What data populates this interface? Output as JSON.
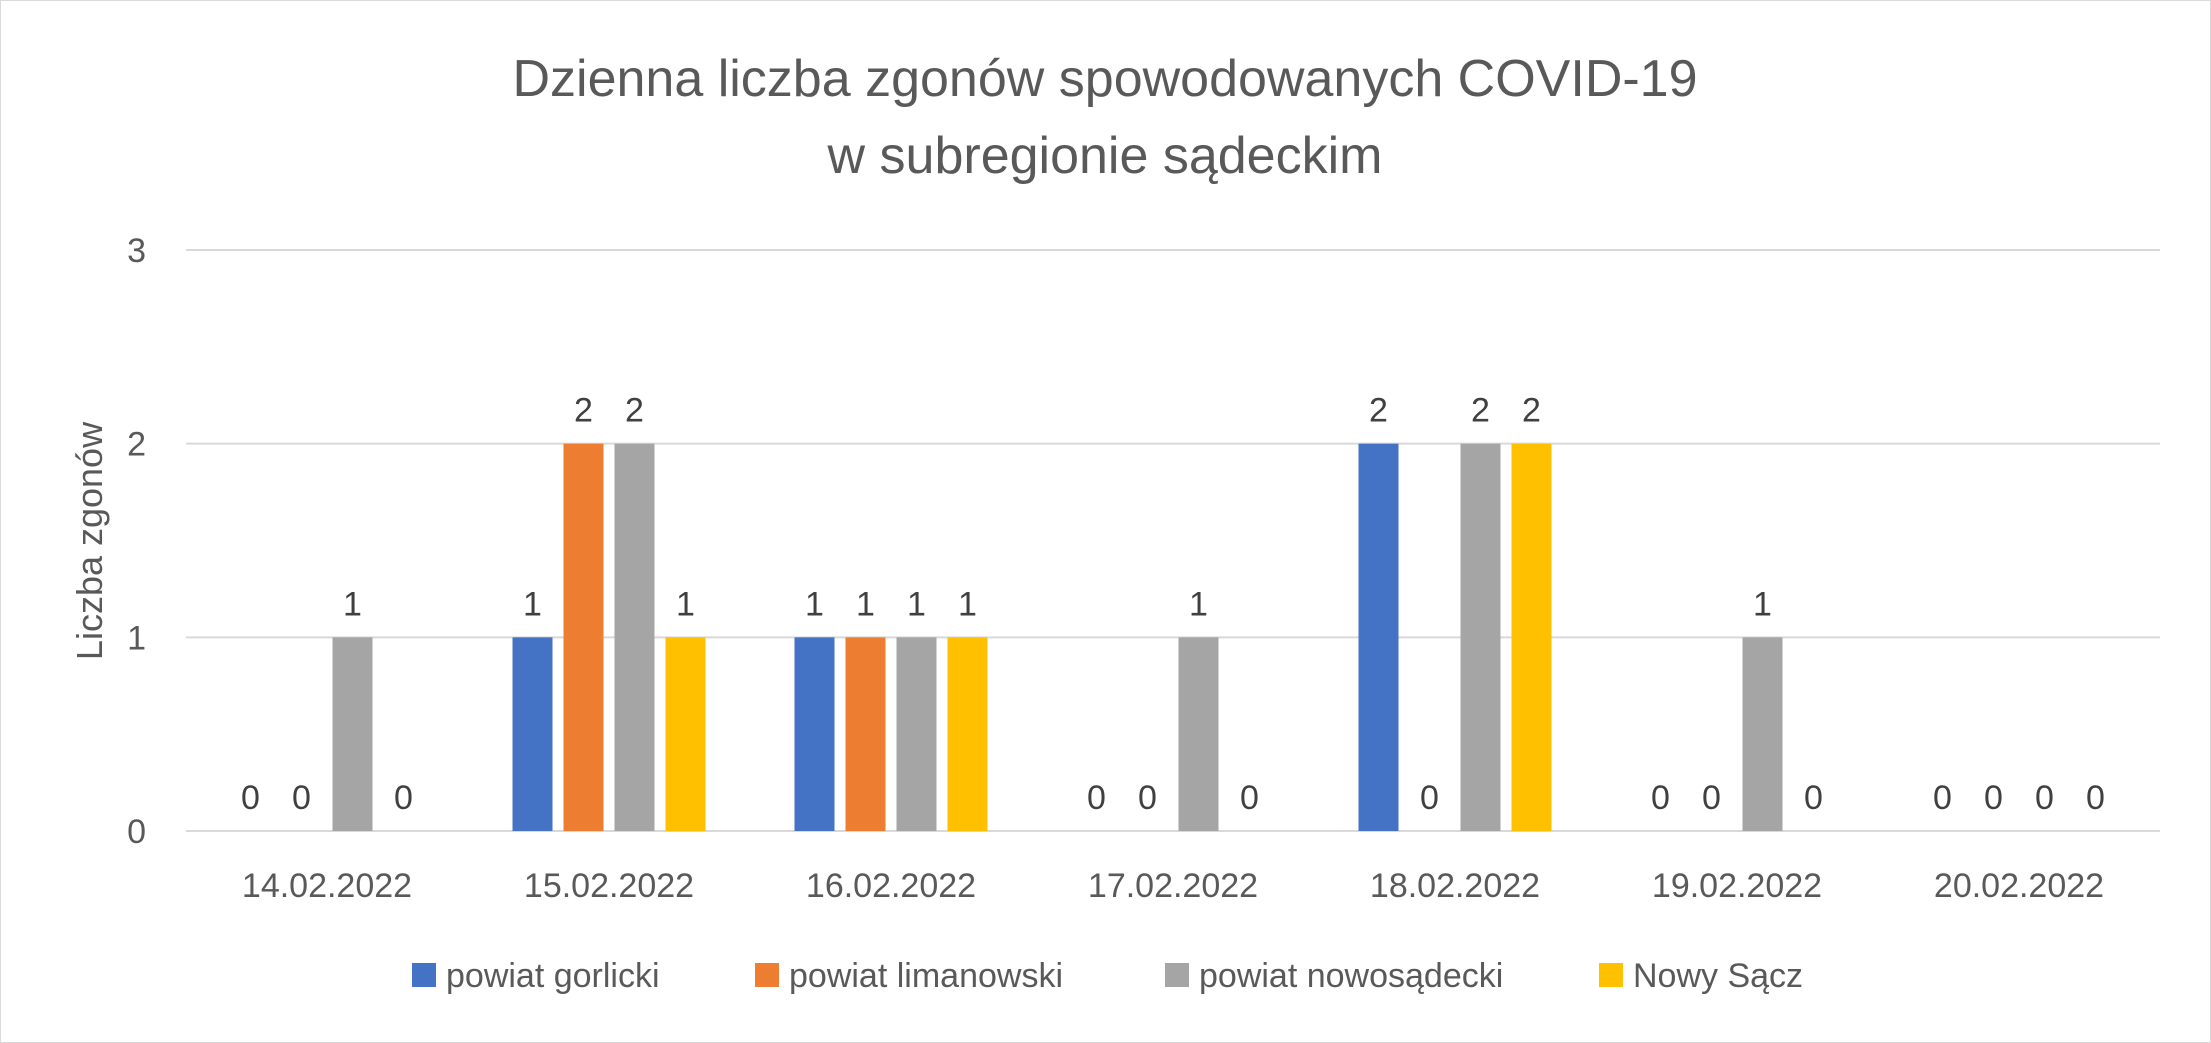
{
  "chart_data": {
    "type": "bar",
    "title": "Dzienna liczba zgonów spowodowanych COVID-19",
    "subtitle": "w subregionie sądeckim",
    "ylabel": "Liczba zgonów",
    "xlabel": "",
    "ylim": [
      0,
      3
    ],
    "yticks": [
      0,
      1,
      2,
      3
    ],
    "grid": true,
    "legend_position": "bottom",
    "categories": [
      "14.02.2022",
      "15.02.2022",
      "16.02.2022",
      "17.02.2022",
      "18.02.2022",
      "19.02.2022",
      "20.02.2022"
    ],
    "series": [
      {
        "name": "powiat gorlicki",
        "color": "#4472c4",
        "values": [
          0,
          1,
          1,
          0,
          2,
          0,
          0
        ]
      },
      {
        "name": "powiat limanowski",
        "color": "#ed7d31",
        "values": [
          0,
          2,
          1,
          0,
          0,
          0,
          0
        ]
      },
      {
        "name": "powiat nowosądecki",
        "color": "#a5a5a5",
        "values": [
          1,
          2,
          1,
          1,
          2,
          1,
          0
        ]
      },
      {
        "name": "Nowy Sącz",
        "color": "#ffc000",
        "values": [
          0,
          1,
          1,
          0,
          2,
          0,
          0
        ]
      }
    ]
  }
}
